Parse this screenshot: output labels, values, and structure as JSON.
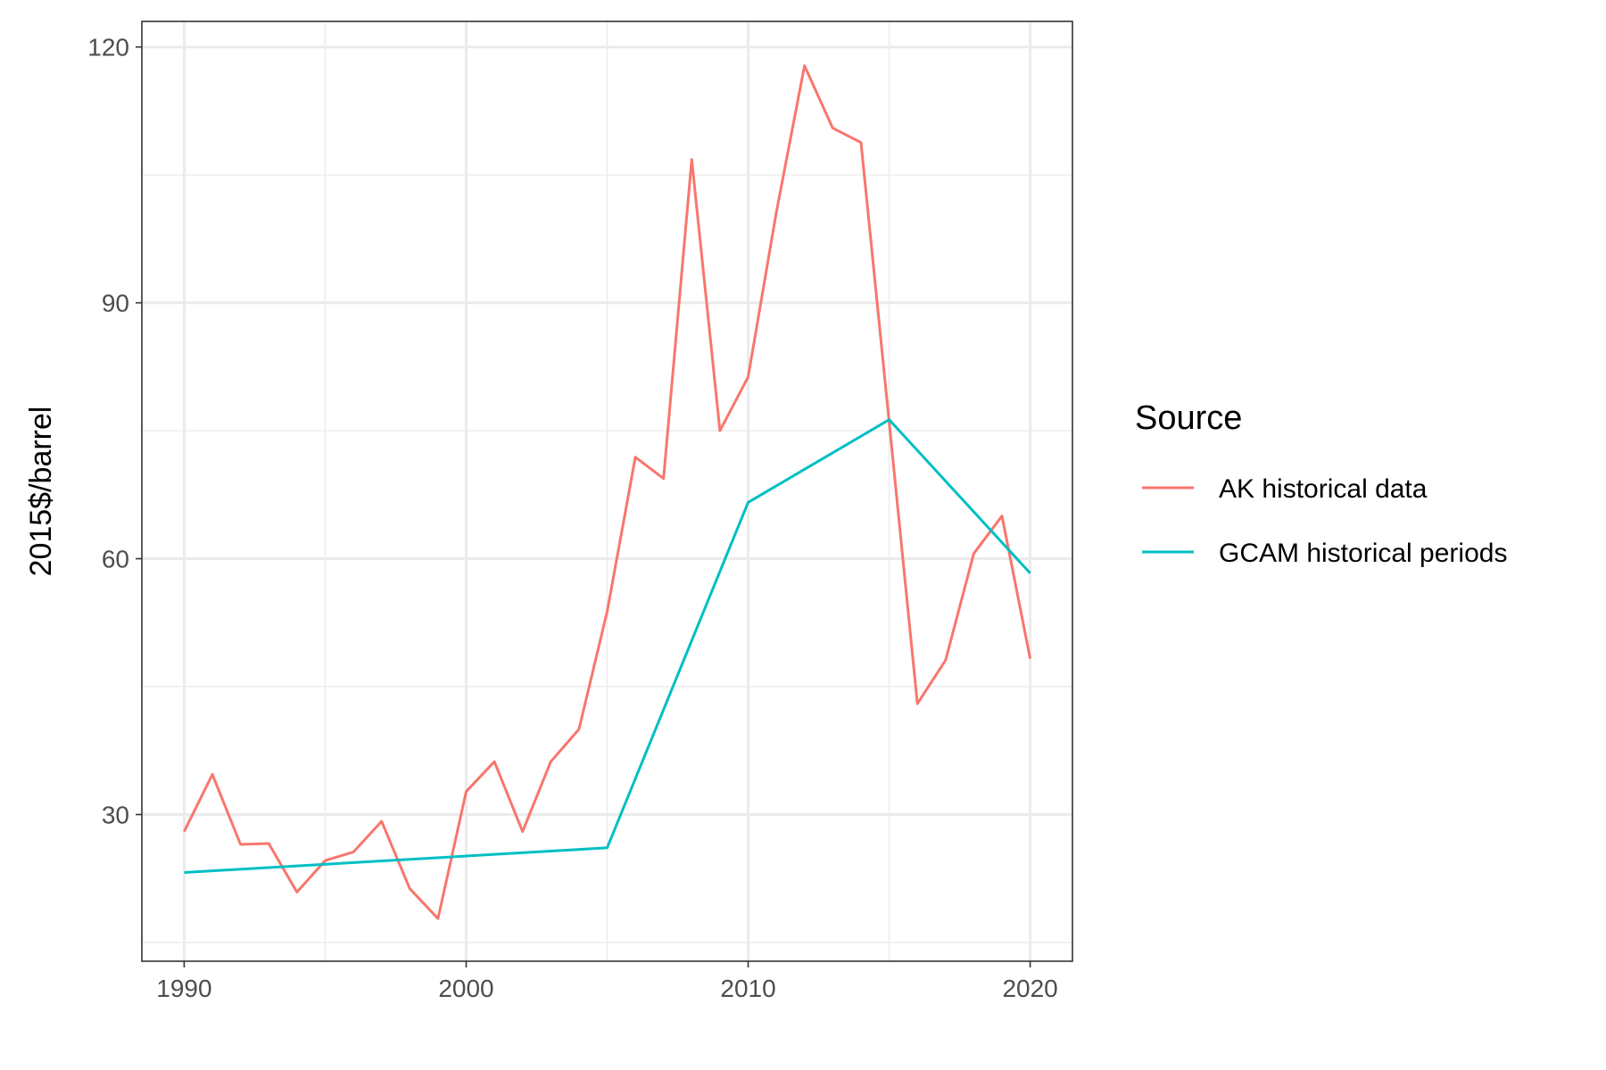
{
  "chart_data": {
    "type": "line",
    "title": "",
    "xlabel": "",
    "ylabel": "2015$/barrel",
    "xlim": [
      1988.5,
      2021.5
    ],
    "ylim": [
      12.8,
      123
    ],
    "x_ticks": [
      1990,
      2000,
      2010,
      2020
    ],
    "y_ticks": [
      30,
      60,
      90,
      120
    ],
    "x_minor_ticks": [
      1995,
      2005,
      2015
    ],
    "y_minor_ticks": [
      15,
      45,
      75,
      105
    ],
    "grid": true,
    "legend": {
      "title": "Source",
      "position": "right"
    },
    "series": [
      {
        "name": "AK historical data",
        "color": "#F8766D",
        "points": [
          [
            1990,
            28.0
          ],
          [
            1991,
            34.7
          ],
          [
            1992,
            26.5
          ],
          [
            1993,
            26.6
          ],
          [
            1994,
            20.9
          ],
          [
            1995,
            24.6
          ],
          [
            1996,
            25.6
          ],
          [
            1997,
            29.2
          ],
          [
            1998,
            21.3
          ],
          [
            1999,
            17.8
          ],
          [
            2000,
            32.7
          ],
          [
            2001,
            36.2
          ],
          [
            2002,
            28.0
          ],
          [
            2003,
            36.2
          ],
          [
            2004,
            40.0
          ],
          [
            2005,
            53.8
          ],
          [
            2006,
            71.9
          ],
          [
            2007,
            69.4
          ],
          [
            2008,
            106.8
          ],
          [
            2009,
            75.0
          ],
          [
            2010,
            81.3
          ],
          [
            2011,
            100.6
          ],
          [
            2012,
            117.8
          ],
          [
            2013,
            110.5
          ],
          [
            2014,
            108.8
          ],
          [
            2015,
            76.0
          ],
          [
            2016,
            43.0
          ],
          [
            2017,
            48.1
          ],
          [
            2018,
            60.6
          ],
          [
            2019,
            65.0
          ],
          [
            2020,
            48.3
          ]
        ]
      },
      {
        "name": "GCAM historical periods",
        "color": "#00BFC4",
        "points": [
          [
            1990,
            23.2
          ],
          [
            2005,
            26.1
          ],
          [
            2010,
            66.6
          ],
          [
            2015,
            76.3
          ],
          [
            2020,
            58.3
          ]
        ]
      }
    ]
  }
}
